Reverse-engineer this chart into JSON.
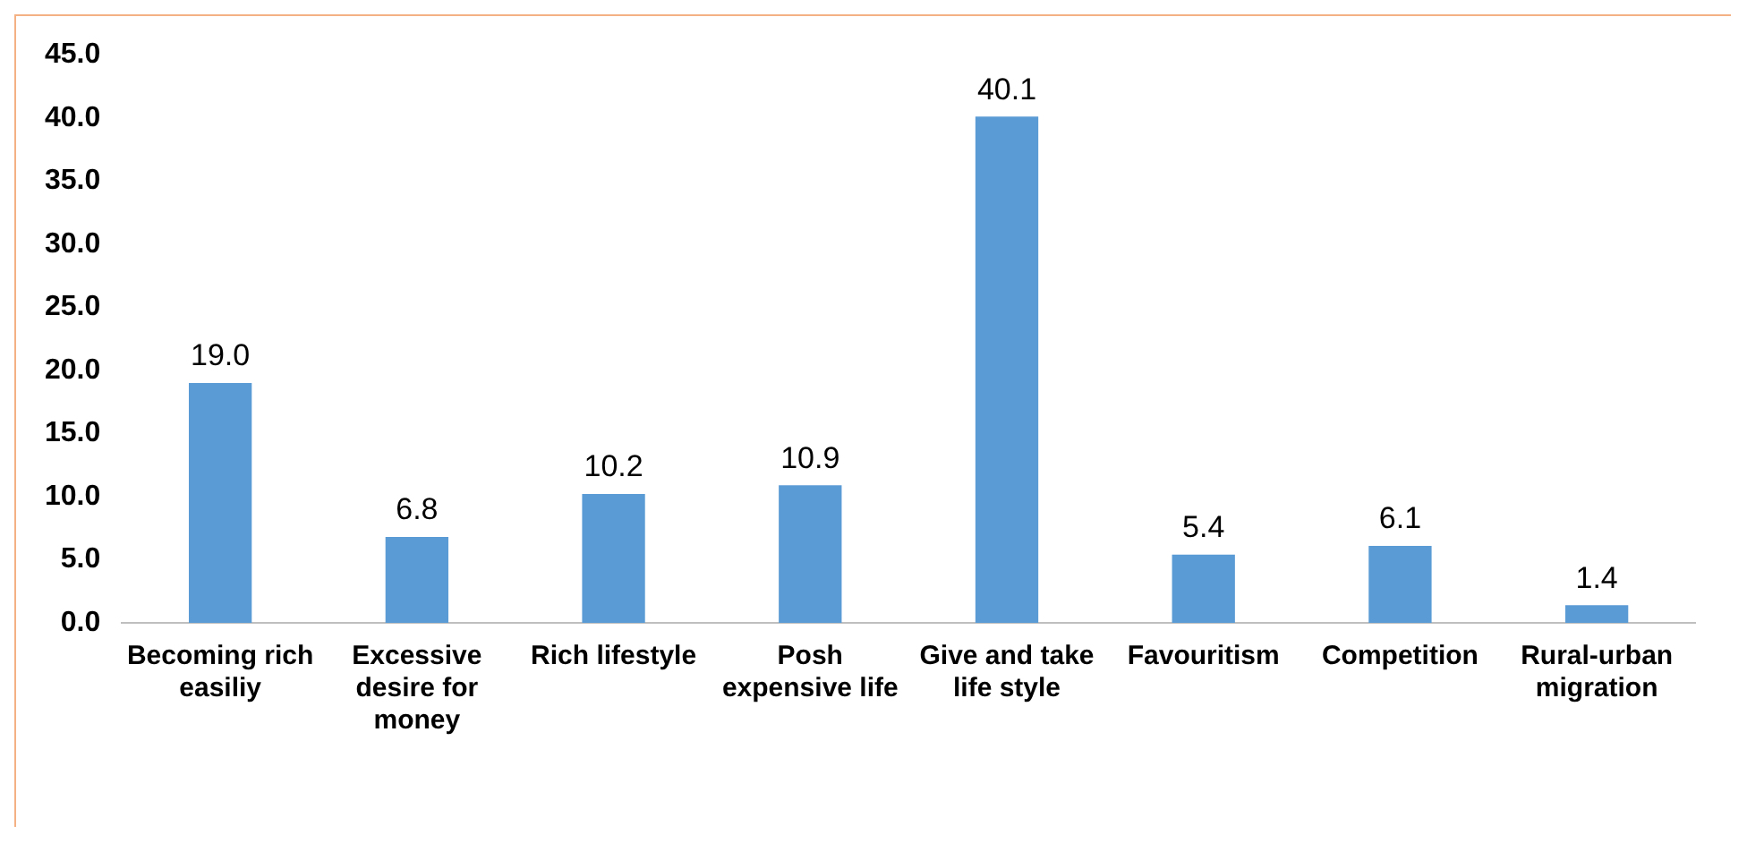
{
  "chart_data": {
    "type": "bar",
    "categories": [
      "Becoming rich easiliy",
      "Excessive desire for money",
      "Rich lifestyle",
      "Posh expensive life",
      "Give and take life style",
      "Favouritism",
      "Competition",
      "Rural-urban migration"
    ],
    "values": [
      19.0,
      6.8,
      10.2,
      10.9,
      40.1,
      5.4,
      6.1,
      1.4
    ],
    "color": "#5b9bd5",
    "ylim": [
      0,
      45
    ],
    "yticks": [
      {
        "value": 0,
        "label": "0.0"
      },
      {
        "value": 5,
        "label": "5.0"
      },
      {
        "value": 10,
        "label": "10.0"
      },
      {
        "value": 15,
        "label": "15.0"
      },
      {
        "value": 20,
        "label": "20.0"
      },
      {
        "value": 25,
        "label": "25.0"
      },
      {
        "value": 30,
        "label": "30.0"
      },
      {
        "value": 35,
        "label": "35.0"
      },
      {
        "value": 40,
        "label": "40.0"
      },
      {
        "value": 45,
        "label": "45.0"
      }
    ],
    "value_labels": [
      "19.0",
      "6.8",
      "10.2",
      "10.9",
      "40.1",
      "5.4",
      "6.1",
      "1.4"
    ],
    "grid": false,
    "legend": false
  }
}
